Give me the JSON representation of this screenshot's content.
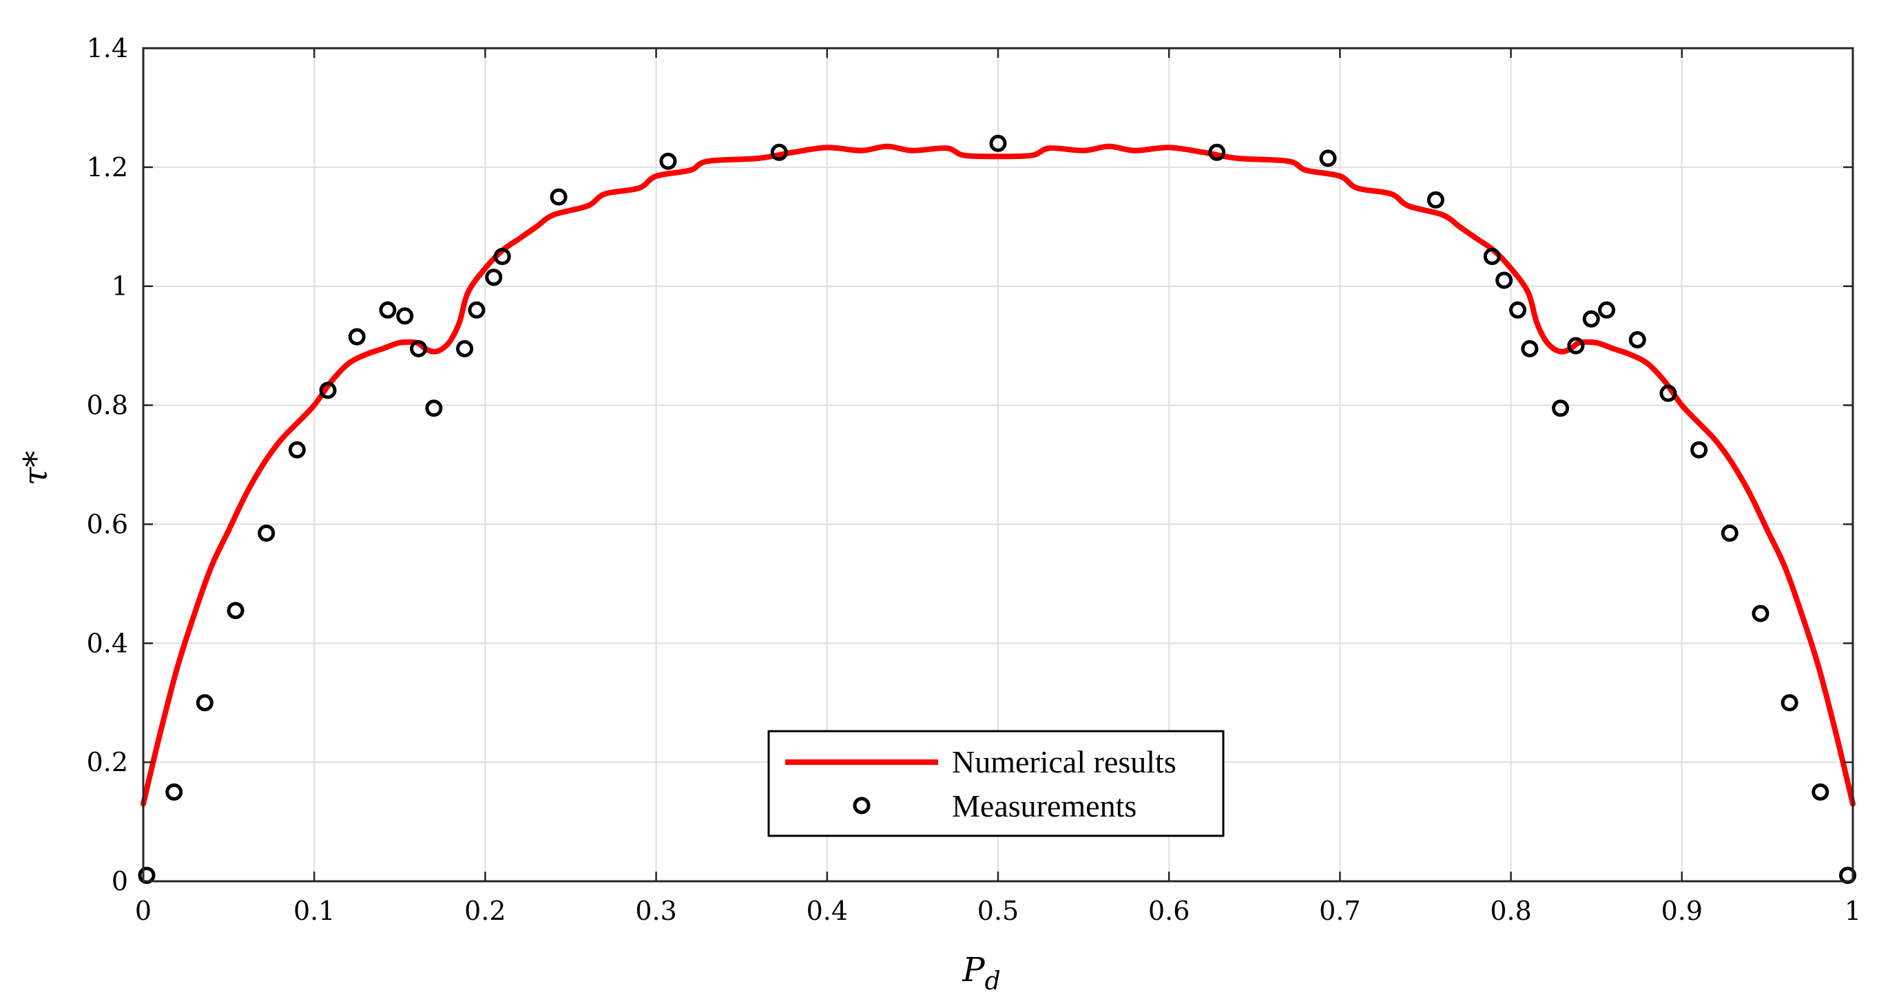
{
  "chart_data": {
    "type": "line",
    "title": "",
    "xlabel": "P",
    "xlabel_sub": "d",
    "ylabel": "τ*",
    "xlim": [
      0,
      1
    ],
    "ylim": [
      0,
      1.4
    ],
    "grid": true,
    "legend_position": "bottom-center",
    "x_ticks": [
      "0",
      "0.1",
      "0.2",
      "0.3",
      "0.4",
      "0.5",
      "0.6",
      "0.7",
      "0.8",
      "0.9",
      "1"
    ],
    "y_ticks": [
      "0",
      "0.2",
      "0.4",
      "0.6",
      "0.8",
      "1",
      "1.2",
      "1.4"
    ],
    "series": [
      {
        "name": "Numerical results",
        "type": "line",
        "color": "#ff0000",
        "points": [
          [
            0.0,
            0.13
          ],
          [
            0.01,
            0.25
          ],
          [
            0.02,
            0.36
          ],
          [
            0.03,
            0.45
          ],
          [
            0.04,
            0.53
          ],
          [
            0.05,
            0.59
          ],
          [
            0.06,
            0.65
          ],
          [
            0.07,
            0.7
          ],
          [
            0.08,
            0.74
          ],
          [
            0.09,
            0.77
          ],
          [
            0.1,
            0.8
          ],
          [
            0.11,
            0.84
          ],
          [
            0.12,
            0.87
          ],
          [
            0.13,
            0.885
          ],
          [
            0.14,
            0.895
          ],
          [
            0.15,
            0.905
          ],
          [
            0.16,
            0.905
          ],
          [
            0.165,
            0.895
          ],
          [
            0.17,
            0.89
          ],
          [
            0.175,
            0.895
          ],
          [
            0.18,
            0.91
          ],
          [
            0.185,
            0.94
          ],
          [
            0.19,
            0.99
          ],
          [
            0.2,
            1.03
          ],
          [
            0.21,
            1.06
          ],
          [
            0.22,
            1.08
          ],
          [
            0.23,
            1.1
          ],
          [
            0.24,
            1.12
          ],
          [
            0.26,
            1.135
          ],
          [
            0.27,
            1.155
          ],
          [
            0.29,
            1.165
          ],
          [
            0.3,
            1.185
          ],
          [
            0.32,
            1.195
          ],
          [
            0.33,
            1.21
          ],
          [
            0.36,
            1.215
          ],
          [
            0.38,
            1.225
          ],
          [
            0.4,
            1.233
          ],
          [
            0.42,
            1.228
          ],
          [
            0.435,
            1.235
          ],
          [
            0.45,
            1.228
          ],
          [
            0.47,
            1.232
          ],
          [
            0.48,
            1.22
          ],
          [
            0.5,
            1.218
          ],
          [
            0.52,
            1.22
          ],
          [
            0.53,
            1.232
          ],
          [
            0.55,
            1.228
          ],
          [
            0.565,
            1.235
          ],
          [
            0.58,
            1.228
          ],
          [
            0.6,
            1.233
          ],
          [
            0.62,
            1.225
          ],
          [
            0.64,
            1.215
          ],
          [
            0.67,
            1.21
          ],
          [
            0.68,
            1.195
          ],
          [
            0.7,
            1.185
          ],
          [
            0.71,
            1.165
          ],
          [
            0.73,
            1.155
          ],
          [
            0.74,
            1.135
          ],
          [
            0.76,
            1.12
          ],
          [
            0.77,
            1.1
          ],
          [
            0.78,
            1.08
          ],
          [
            0.79,
            1.06
          ],
          [
            0.8,
            1.03
          ],
          [
            0.81,
            0.99
          ],
          [
            0.815,
            0.94
          ],
          [
            0.82,
            0.91
          ],
          [
            0.825,
            0.895
          ],
          [
            0.83,
            0.89
          ],
          [
            0.835,
            0.895
          ],
          [
            0.84,
            0.905
          ],
          [
            0.85,
            0.905
          ],
          [
            0.86,
            0.895
          ],
          [
            0.87,
            0.885
          ],
          [
            0.88,
            0.87
          ],
          [
            0.89,
            0.84
          ],
          [
            0.9,
            0.8
          ],
          [
            0.91,
            0.77
          ],
          [
            0.92,
            0.74
          ],
          [
            0.93,
            0.7
          ],
          [
            0.94,
            0.65
          ],
          [
            0.95,
            0.59
          ],
          [
            0.96,
            0.53
          ],
          [
            0.97,
            0.45
          ],
          [
            0.98,
            0.36
          ],
          [
            0.99,
            0.25
          ],
          [
            1.0,
            0.13
          ]
        ]
      },
      {
        "name": "Measurements",
        "type": "scatter",
        "color": "#000000",
        "points": [
          [
            0.002,
            0.01
          ],
          [
            0.018,
            0.15
          ],
          [
            0.036,
            0.3
          ],
          [
            0.054,
            0.455
          ],
          [
            0.072,
            0.585
          ],
          [
            0.09,
            0.725
          ],
          [
            0.108,
            0.825
          ],
          [
            0.125,
            0.915
          ],
          [
            0.143,
            0.96
          ],
          [
            0.153,
            0.95
          ],
          [
            0.161,
            0.895
          ],
          [
            0.17,
            0.795
          ],
          [
            0.188,
            0.895
          ],
          [
            0.195,
            0.96
          ],
          [
            0.205,
            1.015
          ],
          [
            0.21,
            1.05
          ],
          [
            0.243,
            1.15
          ],
          [
            0.307,
            1.21
          ],
          [
            0.372,
            1.225
          ],
          [
            0.5,
            1.24
          ],
          [
            0.628,
            1.225
          ],
          [
            0.693,
            1.215
          ],
          [
            0.756,
            1.145
          ],
          [
            0.789,
            1.05
          ],
          [
            0.796,
            1.01
          ],
          [
            0.804,
            0.96
          ],
          [
            0.811,
            0.895
          ],
          [
            0.829,
            0.795
          ],
          [
            0.838,
            0.9
          ],
          [
            0.847,
            0.945
          ],
          [
            0.856,
            0.96
          ],
          [
            0.874,
            0.91
          ],
          [
            0.892,
            0.82
          ],
          [
            0.91,
            0.725
          ],
          [
            0.928,
            0.585
          ],
          [
            0.946,
            0.45
          ],
          [
            0.963,
            0.3
          ],
          [
            0.981,
            0.15
          ],
          [
            0.997,
            0.01
          ]
        ]
      }
    ]
  }
}
